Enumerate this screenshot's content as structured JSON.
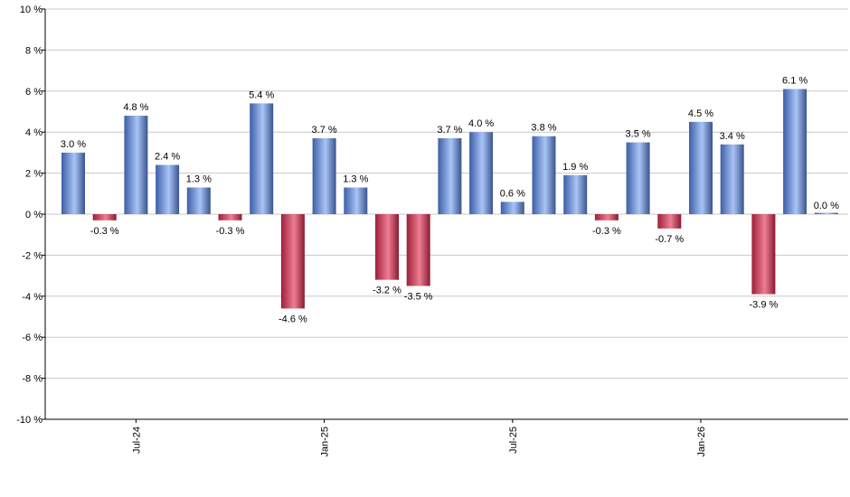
{
  "chart_data": {
    "type": "bar",
    "ylim": [
      -10,
      10
    ],
    "yticks": [
      "10 %",
      "8 %",
      "6 %",
      "4 %",
      "2 %",
      "0 %",
      "-2 %",
      "-4 %",
      "-6 %",
      "-8 %",
      "-10 %"
    ],
    "ytick_values": [
      10,
      8,
      6,
      4,
      2,
      0,
      -2,
      -4,
      -6,
      -8,
      -10
    ],
    "values": [
      3.0,
      -0.3,
      4.8,
      2.4,
      1.3,
      -0.3,
      5.4,
      -4.6,
      3.7,
      1.3,
      -3.2,
      -3.5,
      3.7,
      4.0,
      0.6,
      3.8,
      1.9,
      -0.3,
      3.5,
      -0.7,
      4.5,
      3.4,
      -3.9,
      6.1,
      0.0
    ],
    "value_labels": [
      "3.0 %",
      "-0.3 %",
      "4.8 %",
      "2.4 %",
      "1.3 %",
      "-0.3 %",
      "5.4 %",
      "-4.6 %",
      "3.7 %",
      "1.3 %",
      "-3.2 %",
      "-3.5 %",
      "3.7 %",
      "4.0 %",
      "0.6 %",
      "3.8 %",
      "1.9 %",
      "-0.3 %",
      "3.5 %",
      "-0.7 %",
      "4.5 %",
      "3.4 %",
      "-3.9 %",
      "6.1 %",
      "0.0 %"
    ],
    "xtick_labels": [
      "Jul-24",
      "Jan-25",
      "Jul-25",
      "Jan-26"
    ],
    "xtick_bar_index": [
      2,
      8,
      14,
      20
    ],
    "grid": true,
    "colors": {
      "positive": "#7f9fe0",
      "negative": "#c8405a",
      "grid": "#c8c8c8",
      "axis": "#000000"
    }
  }
}
